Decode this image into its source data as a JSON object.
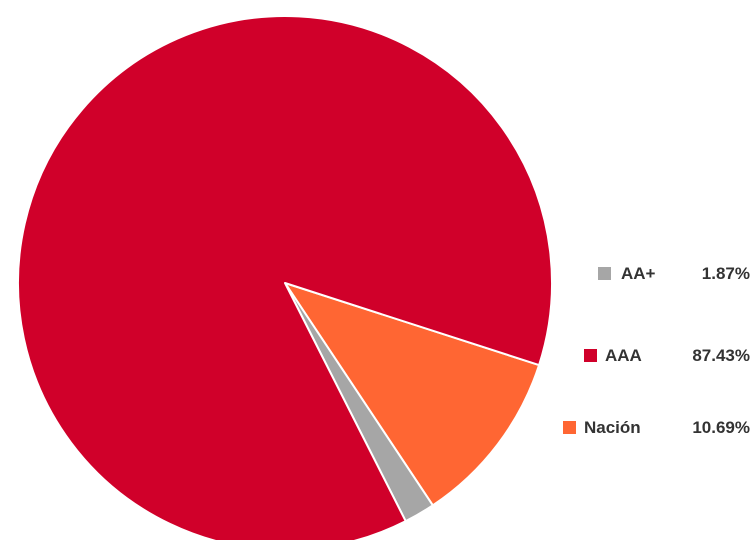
{
  "chart_data": {
    "type": "pie",
    "slices": [
      {
        "label": "AA+",
        "value": 1.87,
        "value_label": "1.87%",
        "color": "#a6a6a6"
      },
      {
        "label": "AAA",
        "value": 87.43,
        "value_label": "87.43%",
        "color": "#d0002a"
      },
      {
        "label": "Nación",
        "value": 10.69,
        "value_label": "10.69%",
        "color": "#ff6633"
      }
    ],
    "legend_position": "right"
  }
}
